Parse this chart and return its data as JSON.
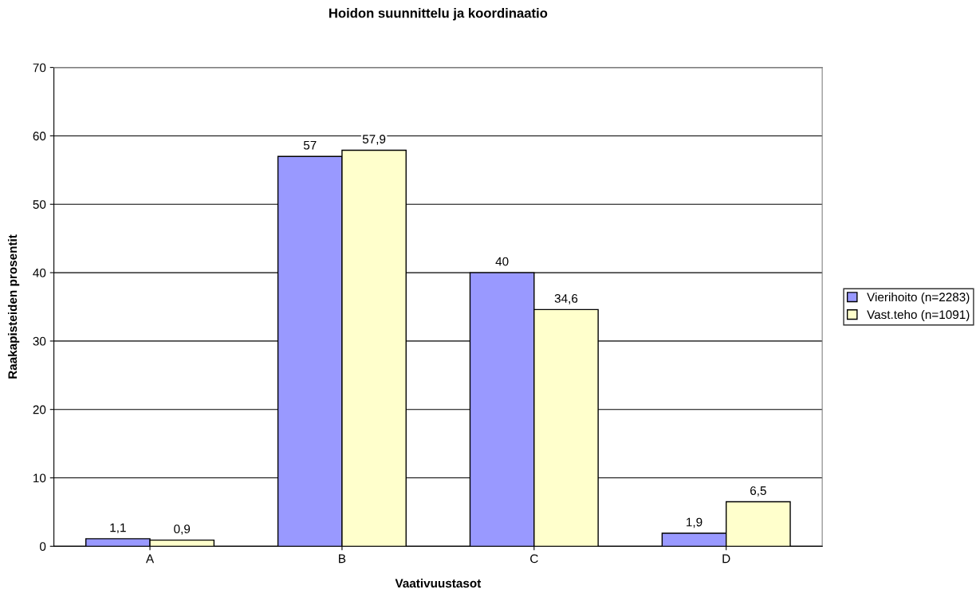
{
  "chart_data": {
    "type": "bar",
    "title": "Hoidon suunnittelu ja koordinaatio",
    "xlabel": "Vaativuustasot",
    "ylabel": "Raakapisteiden prosentit",
    "categories": [
      "A",
      "B",
      "C",
      "D"
    ],
    "series": [
      {
        "name": "Vierihoito (n=2283)",
        "color": "#9999ff",
        "values": [
          1.1,
          57,
          40,
          1.9
        ],
        "value_labels": [
          "1,1",
          "57",
          "40",
          "1,9"
        ]
      },
      {
        "name": "Vast.teho (n=1091)",
        "color": "#ffffcc",
        "values": [
          0.9,
          57.9,
          34.6,
          6.5
        ],
        "value_labels": [
          "0,9",
          "57,9",
          "34,6",
          "6,5"
        ]
      }
    ],
    "ylim": [
      0,
      70
    ],
    "yticks": [
      0,
      10,
      20,
      30,
      40,
      50,
      60,
      70
    ],
    "grid": "y",
    "legend": "right"
  }
}
